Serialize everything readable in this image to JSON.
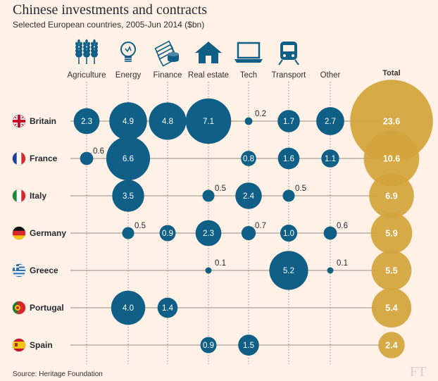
{
  "header": {
    "title": "Chinese investments and contracts",
    "subtitle": "Selected European countries, 2005-Jun 2014 ($bn)"
  },
  "footer": {
    "source": "Source: Heritage Foundation",
    "logo": "FT"
  },
  "colors": {
    "background": "#fff1e5",
    "sector_bubble": "#0f5f86",
    "total_bubble": "#d4a53c",
    "icon": "#0f5f86",
    "gridline": "#8d8d8d"
  },
  "chart_data": {
    "type": "bubble_matrix",
    "columns": [
      {
        "label": "Agriculture",
        "icon": "wheat-icon"
      },
      {
        "label": "Energy",
        "icon": "lightbulb-icon"
      },
      {
        "label": "Finance",
        "icon": "money-stack-icon"
      },
      {
        "label": "Real estate",
        "icon": "house-icon"
      },
      {
        "label": "Tech",
        "icon": "laptop-icon"
      },
      {
        "label": "Transport",
        "icon": "train-icon"
      },
      {
        "label": "Other",
        "icon": ""
      }
    ],
    "total_label": "Total",
    "rows": [
      {
        "country": "Britain",
        "flag": "uk-flag-icon",
        "values": [
          2.3,
          4.9,
          4.8,
          7.1,
          0.2,
          1.7,
          2.7
        ],
        "total": 23.6
      },
      {
        "country": "France",
        "flag": "france-flag-icon",
        "values": [
          0.6,
          6.6,
          null,
          null,
          0.8,
          1.6,
          1.1
        ],
        "total": 10.6
      },
      {
        "country": "Italy",
        "flag": "italy-flag-icon",
        "values": [
          null,
          3.5,
          null,
          0.5,
          2.4,
          0.5,
          null
        ],
        "total": 6.9
      },
      {
        "country": "Germany",
        "flag": "germany-flag-icon",
        "values": [
          null,
          0.5,
          0.9,
          2.3,
          0.7,
          1.0,
          0.6
        ],
        "total": 5.9
      },
      {
        "country": "Greece",
        "flag": "greece-flag-icon",
        "values": [
          null,
          null,
          null,
          0.1,
          null,
          5.2,
          0.1
        ],
        "total": 5.5
      },
      {
        "country": "Portugal",
        "flag": "portugal-flag-icon",
        "values": [
          null,
          4.0,
          1.4,
          null,
          null,
          null,
          null
        ],
        "total": 5.4
      },
      {
        "country": "Spain",
        "flag": "spain-flag-icon",
        "values": [
          null,
          null,
          null,
          0.9,
          1.5,
          null,
          null
        ],
        "total": 2.4
      }
    ]
  }
}
